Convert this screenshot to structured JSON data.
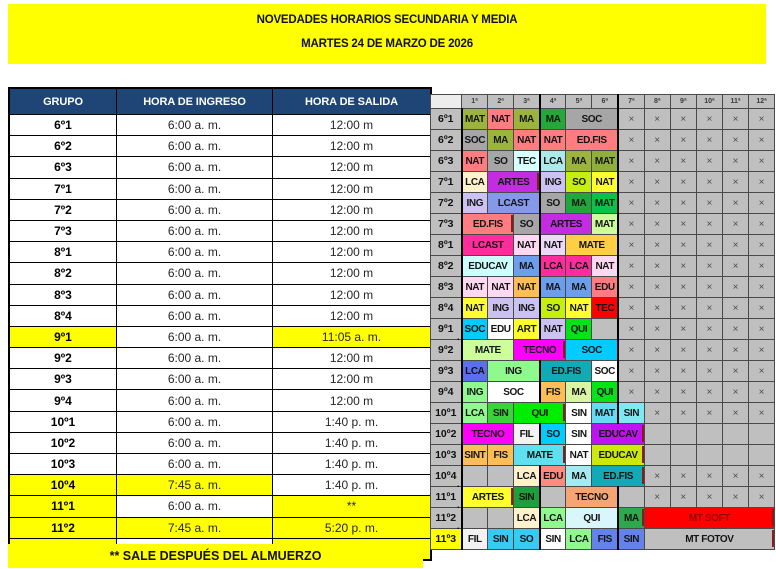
{
  "title": {
    "line1": "NOVEDADES HORARIOS SECUNDARIA Y MEDIA",
    "line2": "MARTES 24 DE MARZO DE 2026"
  },
  "left_table": {
    "headers": [
      "GRUPO",
      "HORA DE INGRESO",
      "HORA DE SALIDA"
    ],
    "rows": [
      {
        "g": "6º1",
        "in": "6:00 a. m.",
        "out": "12:00 m",
        "hg": false,
        "hi": false,
        "hs": false
      },
      {
        "g": "6º2",
        "in": "6:00 a. m.",
        "out": "12:00 m",
        "hg": false,
        "hi": false,
        "hs": false
      },
      {
        "g": "6º3",
        "in": "6:00 a. m.",
        "out": "12:00 m",
        "hg": false,
        "hi": false,
        "hs": false
      },
      {
        "g": "7º1",
        "in": "6:00 a. m.",
        "out": "12:00 m",
        "hg": false,
        "hi": false,
        "hs": false
      },
      {
        "g": "7º2",
        "in": "6:00 a. m.",
        "out": "12:00 m",
        "hg": false,
        "hi": false,
        "hs": false
      },
      {
        "g": "7º3",
        "in": "6:00 a. m.",
        "out": "12:00 m",
        "hg": false,
        "hi": false,
        "hs": false
      },
      {
        "g": "8º1",
        "in": "6:00 a. m.",
        "out": "12:00 m",
        "hg": false,
        "hi": false,
        "hs": false
      },
      {
        "g": "8º2",
        "in": "6:00 a. m.",
        "out": "12:00 m",
        "hg": false,
        "hi": false,
        "hs": false
      },
      {
        "g": "8º3",
        "in": "6:00 a. m.",
        "out": "12:00 m",
        "hg": false,
        "hi": false,
        "hs": false
      },
      {
        "g": "8º4",
        "in": "6:00 a. m.",
        "out": "12:00 m",
        "hg": false,
        "hi": false,
        "hs": false
      },
      {
        "g": "9º1",
        "in": "6:00 a. m.",
        "out": "11:05 a. m.",
        "hg": true,
        "hi": false,
        "hs": true
      },
      {
        "g": "9º2",
        "in": "6:00 a. m.",
        "out": "12:00 m",
        "hg": false,
        "hi": false,
        "hs": false
      },
      {
        "g": "9º3",
        "in": "6:00 a. m.",
        "out": "12:00 m",
        "hg": false,
        "hi": false,
        "hs": false
      },
      {
        "g": "9º4",
        "in": "6:00 a. m.",
        "out": "12:00 m",
        "hg": false,
        "hi": false,
        "hs": false
      },
      {
        "g": "10º1",
        "in": "6:00 a. m.",
        "out": "1:40 p. m.",
        "hg": false,
        "hi": false,
        "hs": false
      },
      {
        "g": "10º2",
        "in": "6:00 a. m.",
        "out": "1:40 p. m.",
        "hg": false,
        "hi": false,
        "hs": false
      },
      {
        "g": "10º3",
        "in": "6:00 a. m.",
        "out": "1:40 p. m.",
        "hg": false,
        "hi": false,
        "hs": false
      },
      {
        "g": "10º4",
        "in": "7:45 a. m.",
        "out": "1:40 p. m.",
        "hg": true,
        "hi": true,
        "hs": false
      },
      {
        "g": "11º1",
        "in": "6:00 a. m.",
        "out": "**",
        "hg": true,
        "hi": false,
        "hs": true
      },
      {
        "g": "11º2",
        "in": "7:45 a. m.",
        "out": "5:20 p. m.",
        "hg": true,
        "hi": true,
        "hs": true
      },
      {
        "g": "11º3",
        "in": "6:00 a. m.",
        "out": "5:20 p. m.",
        "hg": true,
        "hi": false,
        "hs": true
      }
    ]
  },
  "footnote": "** SALE DESPUÉS DEL ALMUERZO",
  "grid": {
    "corner": "",
    "x_symbol": "×",
    "period_headers": [
      "1ª",
      "2ª",
      "3ª",
      "4ª",
      "5ª",
      "6ª",
      "7ª",
      "8ª",
      "9ª",
      "10ª",
      "11ª",
      "12ª"
    ],
    "rows": [
      {
        "label": "6º1",
        "marker": false,
        "label_bg": "#BFBFBF",
        "cells": [
          {
            "t": "MAT",
            "bg": "#9DB43C"
          },
          {
            "t": "NAT",
            "bg": "#FF7C80"
          },
          {
            "t": "MA",
            "bg": "#9DB43C"
          },
          {
            "t": "MA",
            "bg": "#23A839"
          },
          {
            "t": "SOC",
            "s": 2,
            "bg": "#A6A6A6"
          },
          {
            "t": "×",
            "rep": 6,
            "bg": "#BFBFBF",
            "x": true
          }
        ]
      },
      {
        "label": "6º2",
        "marker": false,
        "label_bg": "#BFBFBF",
        "cells": [
          {
            "t": "SOC",
            "bg": "#A6A6A6"
          },
          {
            "t": "MA",
            "bg": "#9DB43C"
          },
          {
            "t": "NAT",
            "bg": "#FF7C80"
          },
          {
            "t": "NAT",
            "bg": "#FF7C80"
          },
          {
            "t": "ED.FIS",
            "s": 2,
            "bg": "#FF7C80"
          },
          {
            "t": "×",
            "rep": 6,
            "bg": "#BFBFBF",
            "x": true
          }
        ]
      },
      {
        "label": "6º3",
        "marker": false,
        "label_bg": "#BFBFBF",
        "cells": [
          {
            "t": "NAT",
            "bg": "#FF7C80"
          },
          {
            "t": "SO",
            "bg": "#A6A6A6"
          },
          {
            "t": "TEC",
            "bg": "#D8FFFF"
          },
          {
            "t": "LCA",
            "bg": "#AEE9E9"
          },
          {
            "t": "MA",
            "bg": "#9DB43C"
          },
          {
            "t": "MAT",
            "bg": "#8FAE3A"
          },
          {
            "t": "×",
            "rep": 6,
            "bg": "#BFBFBF",
            "x": true
          }
        ]
      },
      {
        "label": "7º1",
        "marker": false,
        "label_bg": "#BFBFBF",
        "cells": [
          {
            "t": "LCA",
            "bg": "#FFF2CC"
          },
          {
            "t": "ARTES",
            "s": 2,
            "bg": "#C32CE0",
            "tick": true
          },
          {
            "t": "ING",
            "bg": "#CCC2F2"
          },
          {
            "t": "SO",
            "bg": "#C6EF0F"
          },
          {
            "t": "NAT",
            "bg": "#FFFF2E"
          },
          {
            "t": "×",
            "rep": 6,
            "bg": "#BFBFBF",
            "x": true
          }
        ]
      },
      {
        "label": "7º2",
        "marker": false,
        "label_bg": "#BFBFBF",
        "cells": [
          {
            "t": "ING",
            "bg": "#CCC2F2"
          },
          {
            "t": "LCAST",
            "s": 2,
            "bg": "#8598EA"
          },
          {
            "t": "SO",
            "bg": "#A6A6A6"
          },
          {
            "t": "MA",
            "bg": "#1FA63C"
          },
          {
            "t": "MAT",
            "bg": "#0BC148"
          },
          {
            "t": "×",
            "rep": 6,
            "bg": "#BFBFBF",
            "x": true
          }
        ]
      },
      {
        "label": "7º3",
        "marker": false,
        "label_bg": "#BFBFBF",
        "cells": [
          {
            "t": "ED.FIS",
            "s": 2,
            "bg": "#FF7C80",
            "tick": true
          },
          {
            "t": "SO",
            "bg": "#A6A6A6"
          },
          {
            "t": "ARTES",
            "s": 2,
            "bg": "#C32CE0"
          },
          {
            "t": "MAT",
            "bg": "#CCFF99"
          },
          {
            "t": "×",
            "rep": 6,
            "bg": "#BFBFBF",
            "x": true
          }
        ]
      },
      {
        "label": "8º1",
        "marker": false,
        "label_bg": "#BFBFBF",
        "cells": [
          {
            "t": "LCAST",
            "s": 2,
            "bg": "#FF2D9B"
          },
          {
            "t": "NAT",
            "bg": "#FFD9F2"
          },
          {
            "t": "NAT",
            "bg": "#EDD9F7"
          },
          {
            "t": "MATE",
            "s": 2,
            "bg": "#FFCE47"
          },
          {
            "t": "×",
            "rep": 6,
            "bg": "#BFBFBF",
            "x": true
          }
        ]
      },
      {
        "label": "8º2",
        "marker": false,
        "label_bg": "#BFBFBF",
        "cells": [
          {
            "t": "EDUCAV",
            "s": 2,
            "bg": "#CCFFFF"
          },
          {
            "t": "MA",
            "bg": "#6D9EEB"
          },
          {
            "t": "LCA",
            "bg": "#FF2D9B"
          },
          {
            "t": "LCA",
            "bg": "#FF2D9B"
          },
          {
            "t": "NAT",
            "bg": "#FFD9F2"
          },
          {
            "t": "×",
            "rep": 6,
            "bg": "#BFBFBF",
            "x": true
          }
        ]
      },
      {
        "label": "8º3",
        "marker": false,
        "label_bg": "#BFBFBF",
        "cells": [
          {
            "t": "NAT",
            "bg": "#FFD9F2"
          },
          {
            "t": "NAT",
            "bg": "#FFD9F2"
          },
          {
            "t": "NAT",
            "bg": "#FFBE55"
          },
          {
            "t": "MA",
            "bg": "#6D9EEB"
          },
          {
            "t": "MA",
            "bg": "#6D9EEB"
          },
          {
            "t": "EDU",
            "bg": "#FF7C80"
          },
          {
            "t": "×",
            "rep": 6,
            "bg": "#BFBFBF",
            "x": true
          }
        ]
      },
      {
        "label": "8º4",
        "marker": false,
        "label_bg": "#BFBFBF",
        "cells": [
          {
            "t": "NAT",
            "bg": "#FFFF2E"
          },
          {
            "t": "ING",
            "bg": "#CCC2F2"
          },
          {
            "t": "ING",
            "bg": "#CCC2F2"
          },
          {
            "t": "SO",
            "bg": "#C6EF0F"
          },
          {
            "t": "NAT",
            "bg": "#FFFF2E"
          },
          {
            "t": "TEC",
            "bg": "#FF0000"
          },
          {
            "t": "×",
            "rep": 6,
            "bg": "#BFBFBF",
            "x": true
          }
        ]
      },
      {
        "label": "9º1",
        "marker": true,
        "label_bg": "#BFBFBF",
        "cells": [
          {
            "t": "SOC",
            "bg": "#00CCFF"
          },
          {
            "t": "EDU",
            "bg": "#FFFFFF"
          },
          {
            "t": "ART",
            "bg": "#FFFF2E"
          },
          {
            "t": "NAT",
            "bg": "#CCC2F2"
          },
          {
            "t": "QUI",
            "bg": "#00E513"
          },
          {
            "t": "",
            "bg": "#BFBFBF"
          },
          {
            "t": "×",
            "rep": 6,
            "bg": "#BFBFBF",
            "x": true
          }
        ]
      },
      {
        "label": "9º2",
        "marker": false,
        "label_bg": "#BFBFBF",
        "cells": [
          {
            "t": "MATE",
            "s": 2,
            "bg": "#CCFF99"
          },
          {
            "t": "TECNO",
            "s": 2,
            "bg": "#FF00FF",
            "tick": true
          },
          {
            "t": "SOC",
            "s": 2,
            "bg": "#00CCFF"
          },
          {
            "t": "×",
            "rep": 6,
            "bg": "#BFBFBF",
            "x": true
          }
        ]
      },
      {
        "label": "9º3",
        "marker": false,
        "label_bg": "#BFBFBF",
        "cells": [
          {
            "t": "LCA",
            "bg": "#5B6FE8"
          },
          {
            "t": "ING",
            "s": 2,
            "bg": "#8FF98F"
          },
          {
            "t": "ED.FIS",
            "s": 2,
            "bg": "#12AAB5"
          },
          {
            "t": "SOC",
            "bg": "#FFFFFF"
          },
          {
            "t": "×",
            "rep": 6,
            "bg": "#BFBFBF",
            "x": true
          }
        ]
      },
      {
        "label": "9º4",
        "marker": false,
        "label_bg": "#BFBFBF",
        "cells": [
          {
            "t": "ING",
            "bg": "#8FF98F"
          },
          {
            "t": "SOC",
            "s": 2,
            "bg": "#FFFFFF"
          },
          {
            "t": "FIS",
            "bg": "#FFBE55"
          },
          {
            "t": "MA",
            "bg": "#D9F5A3"
          },
          {
            "t": "QUI",
            "bg": "#00E513"
          },
          {
            "t": "×",
            "rep": 6,
            "bg": "#BFBFBF",
            "x": true
          }
        ]
      },
      {
        "label": "10º1",
        "marker": false,
        "label_bg": "#BFBFBF",
        "cells": [
          {
            "t": "LCA",
            "bg": "#8FF98F"
          },
          {
            "t": "SIN",
            "bg": "#38D438"
          },
          {
            "t": "QUI",
            "s": 2,
            "bg": "#00EC00",
            "tick": true
          },
          {
            "t": "SIN",
            "bg": "#FFFFFF"
          },
          {
            "t": "MAT",
            "bg": "#63DBF2"
          },
          {
            "t": "SIN",
            "bg": "#7FE9F2"
          },
          {
            "t": "×",
            "rep": 5,
            "bg": "#BFBFBF",
            "x": true
          }
        ]
      },
      {
        "label": "10º2",
        "marker": false,
        "label_bg": "#BFBFBF",
        "cells": [
          {
            "t": "TECNO",
            "s": 2,
            "bg": "#FF00FF"
          },
          {
            "t": "FIL",
            "bg": "#F2F2F2"
          },
          {
            "t": "SO",
            "bg": "#00CCFF"
          },
          {
            "t": "SIN",
            "bg": "#FFFFFF"
          },
          {
            "t": "EDUCAV",
            "s": 2,
            "bg": "#BE12F5",
            "tick": true
          },
          {
            "t": "",
            "rep": 5,
            "bg": "#BFBFBF"
          }
        ]
      },
      {
        "label": "10º3",
        "marker": false,
        "label_bg": "#BFBFBF",
        "cells": [
          {
            "t": "SINT",
            "bg": "#FFBE55"
          },
          {
            "t": "FIS",
            "bg": "#FFBE55"
          },
          {
            "t": "MATE",
            "s": 2,
            "bg": "#5FE0F0",
            "tick": true
          },
          {
            "t": "NAT",
            "bg": "#FFFFFF"
          },
          {
            "t": "EDUCAV",
            "s": 2,
            "bg": "#CDE90C",
            "tick": true
          },
          {
            "t": "",
            "rep": 5,
            "bg": "#BFBFBF"
          }
        ]
      },
      {
        "label": "10º4",
        "marker": true,
        "label_bg": "#BFBFBF",
        "cells": [
          {
            "t": "",
            "rep": 2,
            "bg": "#BFBFBF"
          },
          {
            "t": "LCA",
            "bg": "#FFF2CC"
          },
          {
            "t": "EDU",
            "bg": "#FF8A80"
          },
          {
            "t": "MA",
            "bg": "#A3EBF2"
          },
          {
            "t": "ED.FIS",
            "s": 2,
            "bg": "#12AAB5",
            "tick": true
          },
          {
            "t": "×",
            "rep": 5,
            "bg": "#BFBFBF",
            "x": true
          }
        ]
      },
      {
        "label": "11º1",
        "marker": true,
        "label_bg": "#BFBFBF",
        "cells": [
          {
            "t": "ARTES",
            "s": 2,
            "bg": "#FFFF2E",
            "tick": true
          },
          {
            "t": "SIN",
            "bg": "#1F9E3C"
          },
          {
            "t": "",
            "bg": "#BFBFBF"
          },
          {
            "t": "TECNO",
            "s": 2,
            "bg": "#F5A573"
          },
          {
            "t": "",
            "bg": "#BFBFBF"
          },
          {
            "t": "×",
            "rep": 5,
            "bg": "#BFBFBF",
            "x": true
          }
        ]
      },
      {
        "label": "11º2",
        "marker": true,
        "label_bg": "#BFBFBF",
        "cells": [
          {
            "t": "",
            "rep": 2,
            "bg": "#BFBFBF"
          },
          {
            "t": "LCA",
            "bg": "#FFF2CC"
          },
          {
            "t": "LCA",
            "bg": "#8FF98F"
          },
          {
            "t": "QUI",
            "s": 2,
            "bg": "#D9F7FA"
          },
          {
            "t": "MA",
            "bg": "#2EA84C",
            "tick": true
          },
          {
            "t": "MT SOFT",
            "s": 5,
            "bg": "#FF0000",
            "fg": "#9B0000",
            "tick": true
          }
        ]
      },
      {
        "label": "11º3",
        "marker": false,
        "label_bg": "#FFFF00",
        "cells": [
          {
            "t": "FIL",
            "bg": "#F2F2F2"
          },
          {
            "t": "SIN",
            "bg": "#38CBF2"
          },
          {
            "t": "SO",
            "bg": "#38CBF2"
          },
          {
            "t": "SIN",
            "bg": "#FFFFFF"
          },
          {
            "t": "LCA",
            "bg": "#8FF98F"
          },
          {
            "t": "FIS",
            "bg": "#6383EA"
          },
          {
            "t": "SIN",
            "bg": "#6383EA"
          },
          {
            "t": "MT FOTOV",
            "s": 5,
            "bg": "#BFBFBF",
            "tick": true
          }
        ]
      }
    ]
  }
}
